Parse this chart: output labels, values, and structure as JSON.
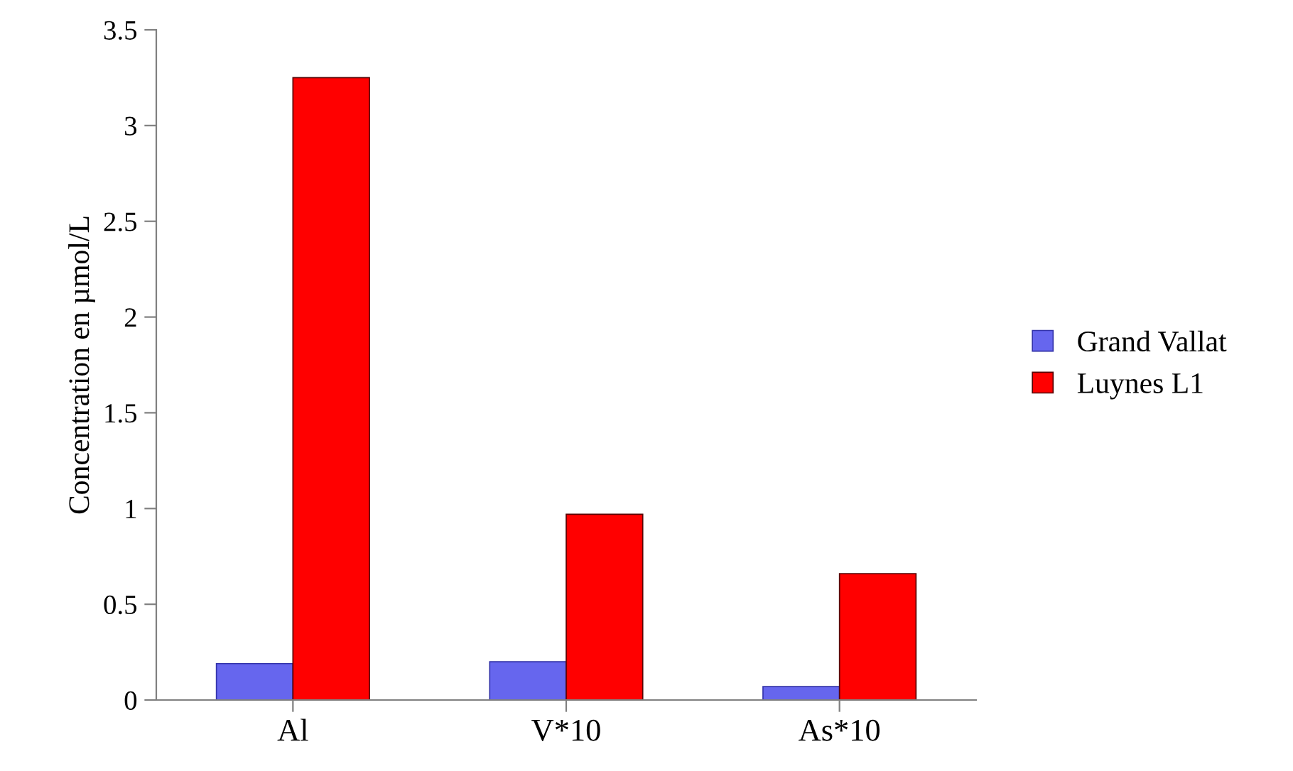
{
  "chart_data": {
    "type": "bar",
    "ylabel": "Concentration en µmol/L",
    "categories": [
      "Al",
      "V*10",
      "As*10"
    ],
    "series": [
      {
        "name": "Grand Vallat",
        "color": "#6666ee",
        "values": [
          0.19,
          0.2,
          0.07
        ]
      },
      {
        "name": "Luynes L1",
        "color": "#ff0000",
        "values": [
          3.25,
          0.97,
          0.66
        ]
      }
    ],
    "ylim": [
      0,
      3.5
    ],
    "yticks": [
      0,
      0.5,
      1,
      1.5,
      2,
      2.5,
      3,
      3.5
    ],
    "grid": false,
    "legend": "right"
  }
}
